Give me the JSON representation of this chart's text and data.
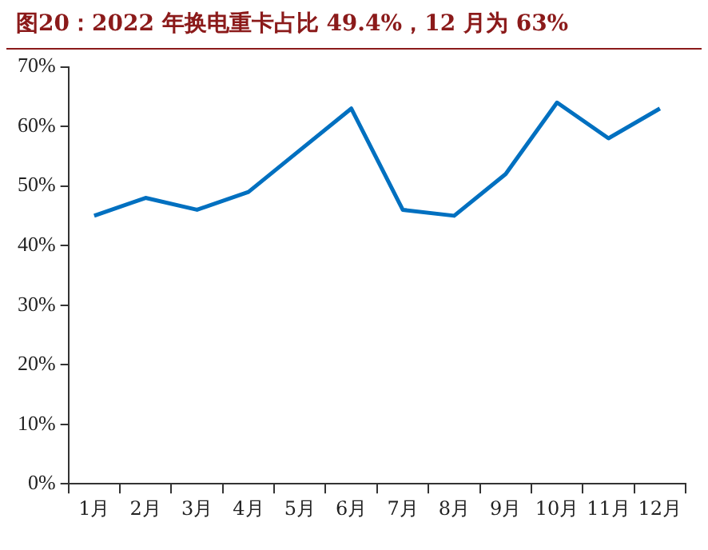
{
  "chart_data": {
    "type": "line",
    "title": "图20：2022 年换电重卡占比 49.4%，12 月为 63%",
    "categories": [
      "1月",
      "2月",
      "3月",
      "4月",
      "5月",
      "6月",
      "7月",
      "8月",
      "9月",
      "10月",
      "11月",
      "12月"
    ],
    "series": [
      {
        "color": "#0070c0",
        "values": [
          45,
          48,
          46,
          49,
          56,
          63,
          46,
          45,
          52,
          64,
          58,
          63
        ]
      }
    ],
    "ylim": [
      0,
      70
    ],
    "yticks": [
      {
        "value": 0,
        "label": "0%"
      },
      {
        "value": 10,
        "label": "10%"
      },
      {
        "value": 20,
        "label": "20%"
      },
      {
        "value": 30,
        "label": "30%"
      },
      {
        "value": 40,
        "label": "40%"
      },
      {
        "value": 50,
        "label": "50%"
      },
      {
        "value": 60,
        "label": "60%"
      },
      {
        "value": 70,
        "label": "70%"
      }
    ],
    "grid": false,
    "legend": false,
    "marker": "none",
    "line_style": "solid"
  }
}
